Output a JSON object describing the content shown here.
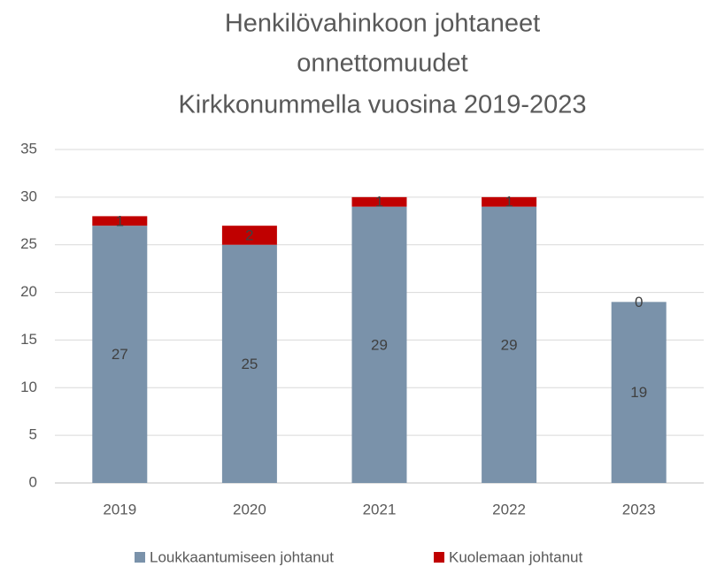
{
  "chart_data": {
    "type": "stacked_bar",
    "title": [
      "Henkilövahinkoon johtaneet",
      "onnettomuudet",
      "Kirkkonummella vuosina 2019-2023"
    ],
    "categories": [
      "2019",
      "2020",
      "2021",
      "2022",
      "2023"
    ],
    "series": [
      {
        "name": "Loukkaantumiseen johtanut",
        "color": "#7a92aa",
        "values": [
          27,
          25,
          29,
          29,
          19
        ]
      },
      {
        "name": "Kuolemaan johtanut",
        "color": "#c00000",
        "values": [
          1,
          2,
          1,
          1,
          0
        ]
      }
    ],
    "ylim": [
      0,
      35
    ],
    "yticks": [
      0,
      5,
      10,
      15,
      20,
      25,
      30,
      35
    ],
    "grid": true,
    "legend": "bottom"
  }
}
